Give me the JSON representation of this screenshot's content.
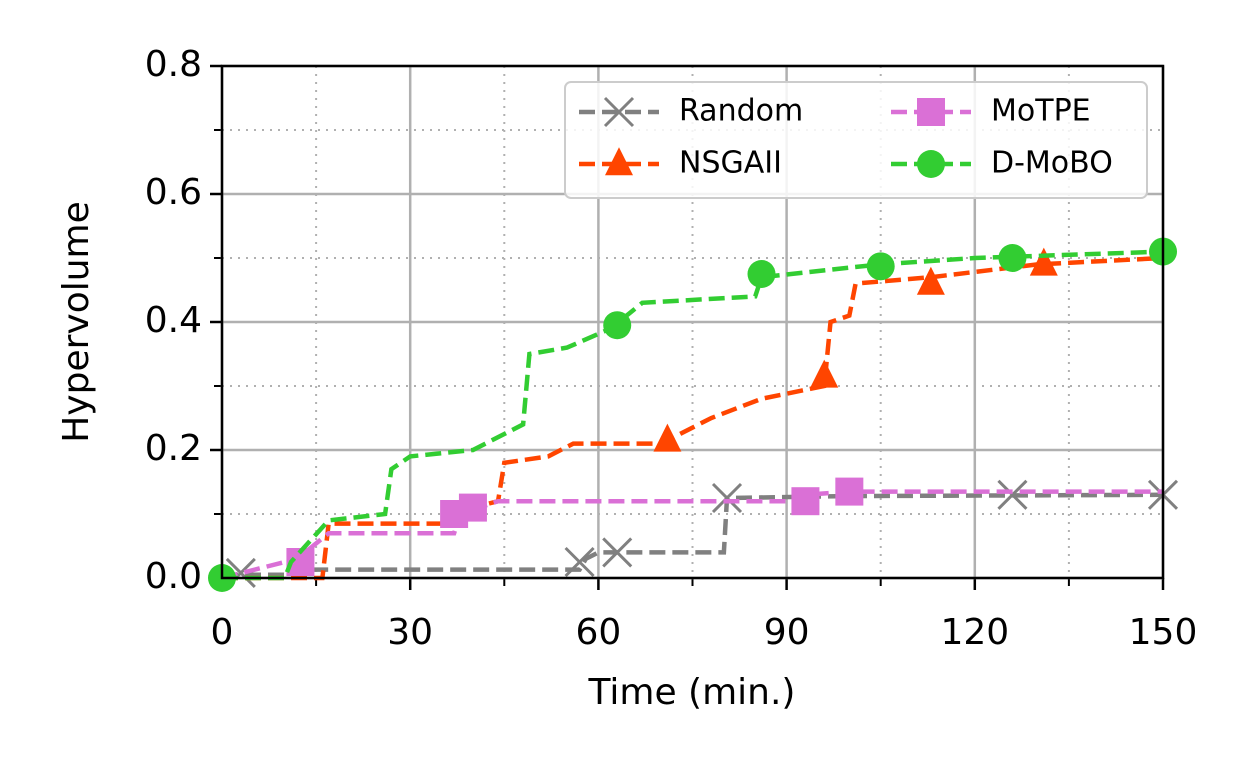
{
  "chart_data": {
    "type": "line",
    "xlabel": "Time (min.)",
    "ylabel": "Hypervolume",
    "xlim": [
      0,
      150
    ],
    "ylim": [
      0,
      0.8
    ],
    "xticks": [
      0,
      30,
      60,
      90,
      120,
      150
    ],
    "yticks": [
      {
        "value": 0,
        "label": "0.0"
      },
      {
        "value": 0.2,
        "label": "0.2"
      },
      {
        "value": 0.4,
        "label": "0.4"
      },
      {
        "value": 0.6,
        "label": "0.6"
      },
      {
        "value": 0.8,
        "label": "0.8"
      }
    ],
    "xminorticks": [
      15,
      45,
      75,
      105,
      135
    ],
    "yminorticks": [
      0.1,
      0.3,
      0.5,
      0.7
    ],
    "grid": true,
    "legend": "upper right",
    "series": [
      {
        "name": "Random",
        "color": "#808080",
        "marker": "x",
        "x": [
          0,
          12,
          13,
          57,
          58,
          60,
          80,
          80.5,
          100,
          150
        ],
        "values": [
          0.005,
          0.005,
          0.013,
          0.013,
          0.03,
          0.04,
          0.04,
          0.125,
          0.128,
          0.13
        ],
        "markers": {
          "x": [
            3,
            57,
            63,
            80.5,
            126,
            150
          ],
          "values": [
            0.008,
            0.025,
            0.04,
            0.125,
            0.13,
            0.13
          ]
        }
      },
      {
        "name": "NSGAII",
        "color": "#ff4500",
        "marker": "triangle",
        "x": [
          0,
          16,
          17,
          35,
          36,
          44,
          45,
          52,
          56,
          70,
          78,
          86,
          96,
          97,
          100,
          101,
          113,
          130,
          150
        ],
        "values": [
          0,
          0,
          0.085,
          0.085,
          0.1,
          0.12,
          0.18,
          0.19,
          0.21,
          0.21,
          0.25,
          0.28,
          0.3,
          0.4,
          0.41,
          0.46,
          0.47,
          0.49,
          0.5
        ],
        "markers": {
          "x": [
            71,
            96,
            113,
            131
          ],
          "values": [
            0.215,
            0.315,
            0.46,
            0.49
          ]
        }
      },
      {
        "name": "MoTPE",
        "color": "#da70d6",
        "marker": "square",
        "x": [
          0,
          12,
          17,
          37,
          38,
          44,
          92,
          93,
          100,
          150
        ],
        "values": [
          0,
          0.03,
          0.07,
          0.07,
          0.1,
          0.12,
          0.12,
          0.13,
          0.135,
          0.135
        ],
        "markers": {
          "x": [
            12.5,
            37,
            40,
            93,
            100
          ],
          "values": [
            0.025,
            0.1,
            0.11,
            0.12,
            0.135
          ]
        }
      },
      {
        "name": "D-MoBO",
        "color": "#32cd32",
        "marker": "circle",
        "x": [
          0,
          10,
          11,
          17,
          26,
          27,
          30,
          40,
          48,
          49,
          55,
          62,
          67,
          85,
          86,
          100,
          105,
          120,
          150
        ],
        "values": [
          0,
          0,
          0.025,
          0.09,
          0.1,
          0.17,
          0.19,
          0.2,
          0.24,
          0.35,
          0.36,
          0.39,
          0.43,
          0.44,
          0.47,
          0.485,
          0.49,
          0.5,
          0.51
        ],
        "markers": {
          "x": [
            0,
            63,
            86,
            105,
            126,
            150
          ],
          "values": [
            0,
            0.395,
            0.475,
            0.487,
            0.5,
            0.51
          ]
        }
      }
    ]
  }
}
